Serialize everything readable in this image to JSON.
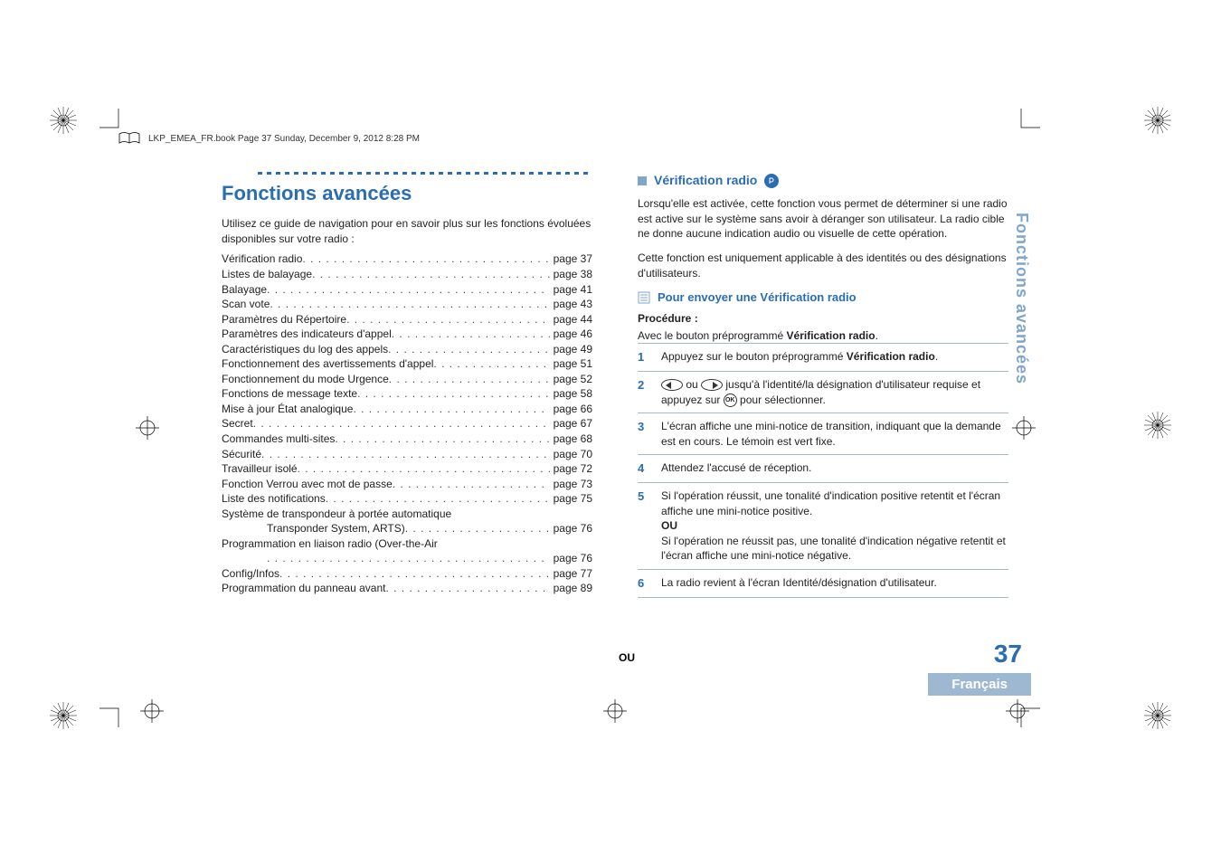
{
  "header": {
    "filename_line": "LKP_EMEA_FR.book  Page 37  Sunday, December 9, 2012  8:28 PM"
  },
  "left": {
    "title": "Fonctions avancées",
    "intro": "Utilisez ce guide de navigation pour en savoir plus sur les fonctions évoluées disponibles sur votre radio :",
    "toc": [
      {
        "label": "Vérification radio",
        "page": "page 37"
      },
      {
        "label": "Listes de balayage",
        "page": "page 38"
      },
      {
        "label": "Balayage",
        "page": "page 41"
      },
      {
        "label": "Scan vote",
        "page": "page 43"
      },
      {
        "label": "Paramètres du Répertoire",
        "page": "page 44"
      },
      {
        "label": "Paramètres des indicateurs d'appel",
        "page": "page 46"
      },
      {
        "label": "Caractéristiques du log des appels",
        "page": "page 49"
      },
      {
        "label": "Fonctionnement des avertissements d'appel",
        "page": "page 51"
      },
      {
        "label": "Fonctionnement du mode Urgence",
        "page": "page 52"
      },
      {
        "label": "Fonctions de message texte",
        "page": "page 58"
      },
      {
        "label": "Mise à jour État analogique",
        "page": "page 66"
      },
      {
        "label": "Secret",
        "page": "page 67"
      },
      {
        "label": "Commandes multi-sites",
        "page": "page 68"
      },
      {
        "label": "Sécurité",
        "page": "page 70"
      },
      {
        "label": "Travailleur isolé",
        "page": "page 72"
      },
      {
        "label": "Fonction Verrou avec mot de passe",
        "page": "page 73"
      },
      {
        "label": "Liste des notifications",
        "page": "page 75"
      },
      {
        "label": "Système de transpondeur à portée automatique",
        "nopageline": true
      },
      {
        "label": "Transponder System, ARTS)",
        "page": "page 76",
        "indent": true
      },
      {
        "label": "Programmation en liaison radio (Over-the-Air",
        "nopageline": true
      },
      {
        "label": "",
        "page": "page 76",
        "indent": true,
        "dotsonly": true
      },
      {
        "label": "Config/Infos",
        "page": "page 77"
      },
      {
        "label": "Programmation du panneau avant",
        "page": "page 89"
      }
    ]
  },
  "right": {
    "sec_title": "Vérification radio",
    "para1": "Lorsqu'elle est activée, cette fonction vous permet de déterminer si une radio est active sur le système sans avoir à déranger son utilisateur. La radio cible ne donne aucune indication audio ou visuelle de cette opération.",
    "para2": "Cette fonction est uniquement applicable à des identités ou des désignations d'utilisateurs.",
    "sub_title": "Pour envoyer une Vérification radio",
    "proc_label": "Procédure :",
    "proc_line": "Avec le bouton préprogrammé ",
    "proc_bold": "Vérification radio",
    "steps": {
      "s1a": "Appuyez sur le bouton préprogrammé ",
      "s1b": "Vérification radio",
      "s2a": " ou ",
      "s2b": " jusqu'à l'identité/la désignation d'utilisateur requise et appuyez sur ",
      "s2c": " pour sélectionner.",
      "s3": "L'écran affiche une mini-notice de transition, indiquant que la demande est en cours. Le témoin est vert fixe.",
      "s4": "Attendez l'accusé de réception.",
      "s5a": "Si l'opération réussit, une tonalité d'indication positive retentit et l'écran affiche une mini-notice positive.",
      "s5ou": "OU",
      "s5b": "Si l'opération ne réussit pas, une tonalité d'indication négative retentit et l'écran affiche une mini-notice négative.",
      "s6": "La radio revient à l'écran Identité/désignation d'utilisateur."
    },
    "or_bottom": "OU"
  },
  "chrome": {
    "side_tab": "Fonctions avancées",
    "page_num": "37",
    "lang": "Français"
  },
  "colors": {
    "accent": "#2a6db3",
    "accent_light": "#7fa6cc",
    "tab_bg": "#9fb8d1"
  }
}
